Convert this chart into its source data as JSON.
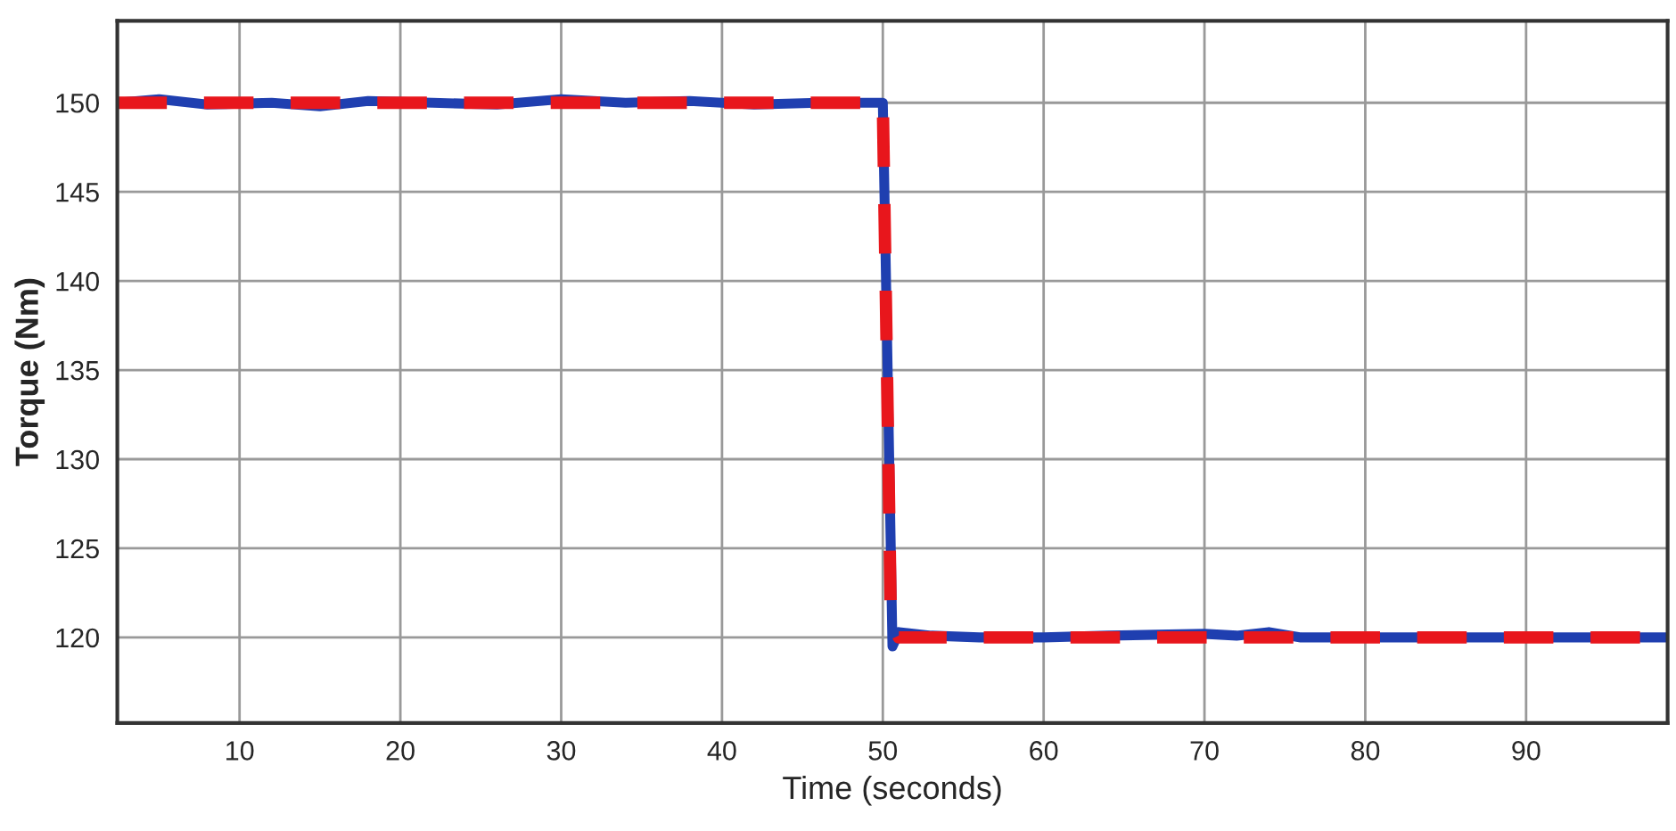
{
  "chart_data": {
    "type": "line",
    "xlabel": "Time (seconds)",
    "ylabel": "Torque (Nm)",
    "series": [
      {
        "color": "#1f3fb0",
        "line_style": "solid",
        "x": [
          2.4,
          5,
          8,
          12,
          15,
          18,
          22,
          26,
          30,
          34,
          38,
          42,
          46,
          50,
          50.3,
          50.6,
          51,
          53,
          56,
          60,
          64,
          70,
          72,
          74,
          76,
          98.8
        ],
        "values": [
          150,
          150.2,
          149.9,
          150,
          149.8,
          150.1,
          150,
          149.9,
          150.2,
          150,
          150.1,
          149.9,
          150,
          150,
          135,
          119.5,
          120.3,
          120.1,
          120,
          120,
          120.1,
          120.2,
          120.1,
          120.3,
          120,
          120
        ]
      },
      {
        "color": "#e8161c",
        "line_style": "dashed",
        "x": [
          2.4,
          50,
          50.5,
          51,
          98.8
        ],
        "values": [
          150,
          150,
          121,
          120,
          120
        ]
      }
    ],
    "xlim": [
      2.4,
      98.8
    ],
    "xticks": [
      10,
      20,
      30,
      40,
      50,
      60,
      70,
      80,
      90
    ],
    "ylim": [
      115.2,
      154.6
    ],
    "yticks": [
      120,
      125,
      130,
      135,
      140,
      145,
      150
    ],
    "grid": true,
    "marker": "none"
  }
}
